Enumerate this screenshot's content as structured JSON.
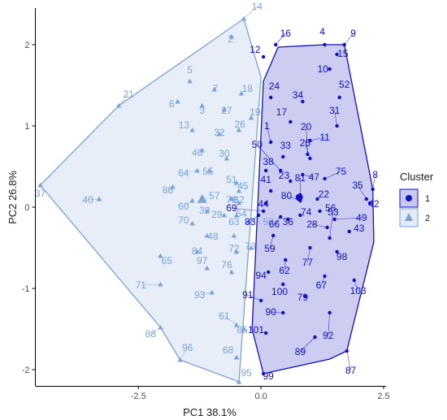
{
  "chart_data": {
    "type": "scatter",
    "xlabel": "PC1 38.1%",
    "ylabel": "PC2 26.8%",
    "xlim": [
      -4.6,
      2.55
    ],
    "ylim": [
      -2.2,
      2.45
    ],
    "x_ticks": [
      -2.5,
      0.0,
      2.5
    ],
    "x_tick_labels": [
      "-2.5",
      "0.0",
      "2.5"
    ],
    "y_ticks": [
      -2,
      -1,
      0,
      1,
      2
    ],
    "y_tick_labels": [
      "-2",
      "-1",
      "0",
      "1",
      "2"
    ],
    "grid": false,
    "legend": {
      "title": "Cluster",
      "position": "right",
      "entries": [
        "1",
        "2"
      ]
    },
    "colors": {
      "cluster1": "#1010c8",
      "cluster1_fill": "#c8c8f0",
      "cluster2": "#7ba3d6",
      "cluster2_fill": "#e3ebf6",
      "axis": "#000000"
    },
    "series": [
      {
        "name": "1",
        "marker": "circle",
        "centroid": [
          0.78,
          0.12
        ],
        "hull": [
          [
            0.35,
            1.97
          ],
          [
            1.3,
            2.0
          ],
          [
            1.7,
            2.0
          ],
          [
            2.28,
            0.22
          ],
          [
            2.3,
            -0.43
          ],
          [
            1.75,
            -1.77
          ],
          [
            1.4,
            -1.87
          ],
          [
            0.05,
            -2.05
          ],
          [
            -0.18,
            -1.5
          ],
          [
            0.05,
            1.55
          ]
        ],
        "points": [
          {
            "label": "1",
            "x": 0.2,
            "y": 0.8,
            "lx": 0.12,
            "ly": 0.96
          },
          {
            "label": "4",
            "x": 1.3,
            "y": 2.0,
            "lx": 1.25,
            "ly": 2.12
          },
          {
            "label": "8",
            "x": 2.28,
            "y": 0.22,
            "lx": 2.33,
            "ly": 0.36
          },
          {
            "label": "9",
            "x": 1.7,
            "y": 2.0,
            "lx": 1.88,
            "ly": 2.1
          },
          {
            "label": "10",
            "x": 1.4,
            "y": 1.7,
            "lx": 1.26,
            "ly": 1.66
          },
          {
            "label": "11",
            "x": 1.0,
            "y": 0.82,
            "lx": 1.3,
            "ly": 0.82
          },
          {
            "label": "12",
            "x": 0.05,
            "y": 1.85,
            "lx": -0.12,
            "ly": 1.9
          },
          {
            "label": "15",
            "x": 1.55,
            "y": 1.88,
            "lx": 1.67,
            "ly": 1.85
          },
          {
            "label": "16",
            "x": 0.3,
            "y": 2.0,
            "lx": 0.5,
            "ly": 2.1
          },
          {
            "label": "17",
            "x": 0.6,
            "y": 1.05,
            "lx": 0.42,
            "ly": 1.13
          },
          {
            "label": "20",
            "x": 0.95,
            "y": 0.65,
            "lx": 0.92,
            "ly": 0.95
          },
          {
            "label": "22",
            "x": 1.15,
            "y": 0.1,
            "lx": 1.28,
            "ly": 0.12
          },
          {
            "label": "23",
            "x": 0.6,
            "y": 0.32,
            "lx": 0.47,
            "ly": 0.35
          },
          {
            "label": "24",
            "x": 0.2,
            "y": 1.35,
            "lx": 0.27,
            "ly": 1.45
          },
          {
            "label": "25",
            "x": 1.0,
            "y": 0.6,
            "lx": 0.9,
            "ly": 0.75
          },
          {
            "label": "28",
            "x": 1.35,
            "y": -0.25,
            "lx": 1.04,
            "ly": -0.25
          },
          {
            "label": "31",
            "x": 1.55,
            "y": 1.0,
            "lx": 1.5,
            "ly": 1.15
          },
          {
            "label": "33",
            "x": 0.45,
            "y": 0.62,
            "lx": 0.5,
            "ly": 0.72
          },
          {
            "label": "34",
            "x": 0.85,
            "y": 1.3,
            "lx": 0.75,
            "ly": 1.34
          },
          {
            "label": "35",
            "x": 2.15,
            "y": 0.1,
            "lx": 1.97,
            "ly": 0.23
          },
          {
            "label": "36",
            "x": 0.55,
            "y": -0.15,
            "lx": 0.55,
            "ly": -0.22
          },
          {
            "label": "38",
            "x": 0.1,
            "y": 0.45,
            "lx": 0.15,
            "ly": 0.52
          },
          {
            "label": "41",
            "x": 0.2,
            "y": 0.2,
            "lx": 0.1,
            "ly": 0.3
          },
          {
            "label": "42",
            "x": 2.22,
            "y": 0.05,
            "lx": 2.3,
            "ly": 0.0
          },
          {
            "label": "43",
            "x": 1.8,
            "y": -0.3,
            "lx": 2.0,
            "ly": -0.3
          },
          {
            "label": "44",
            "x": 0.1,
            "y": 0.05,
            "lx": 0.05,
            "ly": 0.0
          },
          {
            "label": "47",
            "x": 0.85,
            "y": 0.4,
            "lx": 1.08,
            "ly": 0.33
          },
          {
            "label": "49",
            "x": 1.5,
            "y": -0.15,
            "lx": 2.05,
            "ly": -0.17
          },
          {
            "label": "50",
            "x": 0.4,
            "y": 0.45,
            "lx": -0.08,
            "ly": 0.73
          },
          {
            "label": "52",
            "x": 1.6,
            "y": 1.35,
            "lx": 1.7,
            "ly": 1.47
          },
          {
            "label": "53",
            "x": 1.4,
            "y": -0.38,
            "lx": 1.47,
            "ly": -0.1
          },
          {
            "label": "56",
            "x": 1.2,
            "y": -0.05,
            "lx": 1.42,
            "ly": -0.05
          },
          {
            "label": "59",
            "x": 0.25,
            "y": -0.35,
            "lx": 0.18,
            "ly": -0.55
          },
          {
            "label": "62",
            "x": 0.5,
            "y": -0.65,
            "lx": 0.48,
            "ly": -0.82
          },
          {
            "label": "66",
            "x": 0.4,
            "y": -0.12,
            "lx": 0.27,
            "ly": -0.25
          },
          {
            "label": "67",
            "x": 1.3,
            "y": -0.85,
            "lx": 1.23,
            "ly": -1.0
          },
          {
            "label": "69",
            "x": 0.05,
            "y": -0.05,
            "lx": -0.6,
            "ly": -0.05
          },
          {
            "label": "74",
            "x": 0.8,
            "y": -0.1,
            "lx": 0.92,
            "ly": -0.1
          },
          {
            "label": "75",
            "x": 1.3,
            "y": 0.35,
            "lx": 1.63,
            "ly": 0.4
          },
          {
            "label": "77",
            "x": 1.0,
            "y": -0.5,
            "lx": 0.95,
            "ly": -0.72
          },
          {
            "label": "79",
            "x": 0.9,
            "y": -1.1,
            "lx": 0.85,
            "ly": -1.15
          },
          {
            "label": "80",
            "x": 0.8,
            "y": 0.08,
            "lx": 0.52,
            "ly": 0.1
          },
          {
            "label": "81",
            "x": 0.8,
            "y": 0.15,
            "lx": 0.8,
            "ly": 0.32
          },
          {
            "label": "83",
            "x": -0.05,
            "y": -0.1,
            "lx": -0.22,
            "ly": -0.22
          },
          {
            "label": "87",
            "x": 1.75,
            "y": -1.77,
            "lx": 1.83,
            "ly": -2.05
          },
          {
            "label": "89",
            "x": 1.1,
            "y": -1.6,
            "lx": 0.8,
            "ly": -1.82
          },
          {
            "label": "90",
            "x": 0.45,
            "y": -1.3,
            "lx": 0.2,
            "ly": -1.33
          },
          {
            "label": "91",
            "x": 0.0,
            "y": -1.15,
            "lx": -0.27,
            "ly": -1.12
          },
          {
            "label": "92",
            "x": 1.4,
            "y": -1.3,
            "lx": 1.37,
            "ly": -1.62
          },
          {
            "label": "94",
            "x": 0.15,
            "y": -0.8,
            "lx": 0.0,
            "ly": -0.88
          },
          {
            "label": "98",
            "x": 1.55,
            "y": -0.55,
            "lx": 1.65,
            "ly": -0.65
          },
          {
            "label": "99",
            "x": 0.05,
            "y": -2.05,
            "lx": 0.15,
            "ly": -2.12
          },
          {
            "label": "100",
            "x": 0.45,
            "y": -0.95,
            "lx": 0.38,
            "ly": -1.08
          },
          {
            "label": "101",
            "x": 0.1,
            "y": -1.55,
            "lx": -0.1,
            "ly": -1.55
          },
          {
            "label": "103",
            "x": 1.9,
            "y": -0.9,
            "lx": 1.98,
            "ly": -1.07
          }
        ]
      },
      {
        "name": "2",
        "marker": "triangle",
        "centroid": [
          -1.2,
          0.1
        ],
        "hull": [
          [
            -4.5,
            0.27
          ],
          [
            -2.9,
            1.25
          ],
          [
            -0.35,
            2.32
          ],
          [
            0.0,
            1.6
          ],
          [
            -0.45,
            -2.15
          ],
          [
            -1.65,
            -1.88
          ],
          [
            -2.05,
            -1.48
          ]
        ],
        "points": [
          {
            "label": "2",
            "x": -0.6,
            "y": 2.1,
            "lx": -0.62,
            "ly": 2.03
          },
          {
            "label": "3",
            "x": -1.2,
            "y": 1.25,
            "lx": -1.2,
            "ly": 1.15
          },
          {
            "label": "5",
            "x": -1.45,
            "y": 1.55,
            "lx": -1.45,
            "ly": 1.65
          },
          {
            "label": "6",
            "x": -1.7,
            "y": 1.3,
            "lx": -1.82,
            "ly": 1.23
          },
          {
            "label": "7",
            "x": -0.95,
            "y": 1.45,
            "lx": -0.93,
            "ly": 1.42
          },
          {
            "label": "13",
            "x": -1.4,
            "y": 0.95,
            "lx": -1.57,
            "ly": 0.97
          },
          {
            "label": "14",
            "x": -0.35,
            "y": 2.32,
            "lx": -0.08,
            "ly": 2.43
          },
          {
            "label": "18",
            "x": -0.4,
            "y": 1.4,
            "lx": -0.28,
            "ly": 1.42
          },
          {
            "label": "19",
            "x": -0.2,
            "y": 1.1,
            "lx": -0.12,
            "ly": 1.13
          },
          {
            "label": "21",
            "x": -2.9,
            "y": 1.25,
            "lx": -2.7,
            "ly": 1.35
          },
          {
            "label": "26",
            "x": -0.45,
            "y": 0.95,
            "lx": -0.43,
            "ly": 0.98
          },
          {
            "label": "27",
            "x": -0.75,
            "y": 1.2,
            "lx": -0.7,
            "ly": 1.15
          },
          {
            "label": "29",
            "x": -0.75,
            "y": -0.1,
            "lx": -0.9,
            "ly": -0.13
          },
          {
            "label": "30",
            "x": -0.7,
            "y": 0.6,
            "lx": -0.75,
            "ly": 0.62
          },
          {
            "label": "32",
            "x": -0.85,
            "y": 0.9,
            "lx": -0.85,
            "ly": 0.88
          },
          {
            "label": "37",
            "x": -4.5,
            "y": 0.27,
            "lx": -4.5,
            "ly": 0.13
          },
          {
            "label": "39",
            "x": -1.1,
            "y": -0.05,
            "lx": -1.15,
            "ly": -0.08
          },
          {
            "label": "40",
            "x": -3.3,
            "y": 0.1,
            "lx": -3.53,
            "ly": 0.05
          },
          {
            "label": "45",
            "x": -0.45,
            "y": 0.2,
            "lx": -0.37,
            "ly": 0.22
          },
          {
            "label": "46",
            "x": -1.2,
            "y": 0.7,
            "lx": -1.3,
            "ly": 0.63
          },
          {
            "label": "48",
            "x": -1.1,
            "y": -0.35,
            "lx": -0.98,
            "ly": -0.4
          },
          {
            "label": "51",
            "x": -0.5,
            "y": 0.3,
            "lx": -0.6,
            "ly": 0.3
          },
          {
            "label": "54",
            "x": -0.5,
            "y": -0.1,
            "lx": -0.4,
            "ly": -0.12
          },
          {
            "label": "55",
            "x": -1.05,
            "y": 0.45,
            "lx": -1.08,
            "ly": 0.4
          },
          {
            "label": "57",
            "x": -1.17,
            "y": 0.1,
            "lx": -0.95,
            "ly": 0.1
          },
          {
            "label": "58",
            "x": -0.25,
            "y": -0.18,
            "lx": 0.15,
            "ly": -0.22
          },
          {
            "label": "60",
            "x": -1.4,
            "y": 0.08,
            "lx": -1.58,
            "ly": -0.03
          },
          {
            "label": "61",
            "x": -0.5,
            "y": -1.45,
            "lx": -0.75,
            "ly": -1.38
          },
          {
            "label": "63",
            "x": -0.55,
            "y": -0.35,
            "lx": -0.55,
            "ly": -0.22
          },
          {
            "label": "64",
            "x": -1.3,
            "y": 0.45,
            "lx": -1.58,
            "ly": 0.38
          },
          {
            "label": "65",
            "x": -2.05,
            "y": -0.6,
            "lx": -1.92,
            "ly": -0.7
          },
          {
            "label": "68",
            "x": -0.5,
            "y": -1.85,
            "lx": -0.67,
            "ly": -1.8
          },
          {
            "label": "70",
            "x": -1.4,
            "y": -0.2,
            "lx": -1.58,
            "ly": -0.2
          },
          {
            "label": "71",
            "x": -2.05,
            "y": -0.95,
            "lx": -2.45,
            "ly": -1.0
          },
          {
            "label": "72",
            "x": -0.5,
            "y": -0.55,
            "lx": -0.55,
            "ly": -0.55
          },
          {
            "label": "73",
            "x": -0.2,
            "y": -0.5,
            "lx": -0.22,
            "ly": -0.52
          },
          {
            "label": "76",
            "x": -0.6,
            "y": -0.8,
            "lx": -0.7,
            "ly": -0.75
          },
          {
            "label": "78",
            "x": -0.6,
            "y": 0.1,
            "lx": -0.6,
            "ly": 0.05
          },
          {
            "label": "82",
            "x": -0.45,
            "y": 0.05,
            "lx": -0.45,
            "ly": 0.05
          },
          {
            "label": "84",
            "x": -1.3,
            "y": -0.55,
            "lx": -1.3,
            "ly": -0.58
          },
          {
            "label": "85",
            "x": -0.35,
            "y": -1.5,
            "lx": -0.38,
            "ly": -1.55
          },
          {
            "label": "86",
            "x": -1.8,
            "y": 0.25,
            "lx": -1.9,
            "ly": 0.17
          },
          {
            "label": "88",
            "x": -2.05,
            "y": -1.48,
            "lx": -2.25,
            "ly": -1.6
          },
          {
            "label": "93",
            "x": -1.0,
            "y": -1.05,
            "lx": -1.25,
            "ly": -1.12
          },
          {
            "label": "95",
            "x": -0.45,
            "y": -2.15,
            "lx": -0.3,
            "ly": -2.08
          },
          {
            "label": "96",
            "x": -1.65,
            "y": -1.88,
            "lx": -1.5,
            "ly": -1.77
          },
          {
            "label": "97",
            "x": -1.1,
            "y": -0.75,
            "lx": -1.2,
            "ly": -0.7
          }
        ]
      }
    ]
  }
}
